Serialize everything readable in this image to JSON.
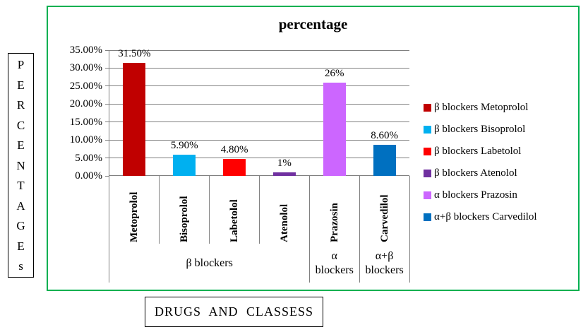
{
  "chart_data": {
    "type": "bar",
    "title": "percentage",
    "xlabel": "DRUGS AND CLASSESS",
    "ylabel": "PERCENTAGEs",
    "ylim": [
      0,
      35
    ],
    "ytick_step": 5,
    "yticks": [
      "35.00%",
      "30.00%",
      "25.00%",
      "20.00%",
      "15.00%",
      "10.00%",
      "5.00%",
      "0.00%"
    ],
    "categories": [
      "Metoprolol",
      "Bisoprolol",
      "Labetolol",
      "Atenolol",
      "Prazosin",
      "Carvedilol"
    ],
    "values": [
      31.5,
      5.9,
      4.8,
      1,
      26,
      8.6
    ],
    "value_labels": [
      "31.50%",
      "5.90%",
      "4.80%",
      "1%",
      "26%",
      "8.60%"
    ],
    "bar_colors": [
      "#C00000",
      "#00B0F0",
      "#FF0000",
      "#7030A0",
      "#CC66FF",
      "#0070C0"
    ],
    "groups": [
      {
        "label": "β blockers",
        "lines": [
          "β blockers"
        ],
        "span": 4
      },
      {
        "label": "α blockers",
        "lines": [
          "α",
          "blockers"
        ],
        "span": 1
      },
      {
        "label": "α+β blockers",
        "lines": [
          "α+β",
          "blockers"
        ],
        "span": 1
      }
    ],
    "legend": [
      {
        "label": "β blockers Metoprolol",
        "color": "#C00000"
      },
      {
        "label": "β blockers Bisoprolol",
        "color": "#00B0F0"
      },
      {
        "label": "β blockers Labetolol",
        "color": "#FF0000"
      },
      {
        "label": "β blockers Atenolol",
        "color": "#7030A0"
      },
      {
        "label": "α blockers Prazosin",
        "color": "#CC66FF"
      },
      {
        "label": "α+β blockers Carvedilol",
        "color": "#0070C0"
      }
    ],
    "grid_on": true,
    "legend_position": "right",
    "frame_color": "#00B050",
    "gridline_color": "#808080"
  }
}
